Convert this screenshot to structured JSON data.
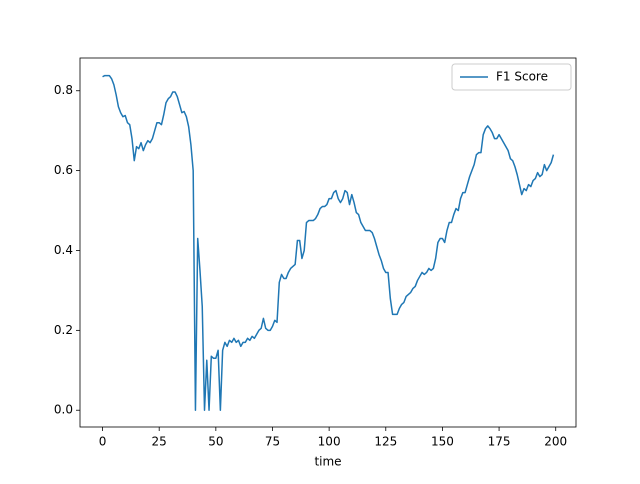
{
  "chart_data": {
    "type": "line",
    "xlabel": "time",
    "x": [
      0,
      1,
      2,
      3,
      4,
      5,
      6,
      7,
      8,
      9,
      10,
      11,
      12,
      13,
      14,
      15,
      16,
      17,
      18,
      19,
      20,
      21,
      22,
      23,
      24,
      25,
      26,
      27,
      28,
      29,
      30,
      31,
      32,
      33,
      34,
      35,
      36,
      37,
      38,
      39,
      40,
      41,
      42,
      43,
      44,
      45,
      46,
      47,
      48,
      49,
      50,
      51,
      52,
      53,
      54,
      55,
      56,
      57,
      58,
      59,
      60,
      61,
      62,
      63,
      64,
      65,
      66,
      67,
      68,
      69,
      70,
      71,
      72,
      73,
      74,
      75,
      76,
      77,
      78,
      79,
      80,
      81,
      82,
      83,
      84,
      85,
      86,
      87,
      88,
      89,
      90,
      91,
      92,
      93,
      94,
      95,
      96,
      97,
      98,
      99,
      100,
      101,
      102,
      103,
      104,
      105,
      106,
      107,
      108,
      109,
      110,
      111,
      112,
      113,
      114,
      115,
      116,
      117,
      118,
      119,
      120,
      121,
      122,
      123,
      124,
      125,
      126,
      127,
      128,
      129,
      130,
      131,
      132,
      133,
      134,
      135,
      136,
      137,
      138,
      139,
      140,
      141,
      142,
      143,
      144,
      145,
      146,
      147,
      148,
      149,
      150,
      151,
      152,
      153,
      154,
      155,
      156,
      157,
      158,
      159,
      160,
      161,
      162,
      163,
      164,
      165,
      166,
      167,
      168,
      169,
      170,
      171,
      172,
      173,
      174,
      175,
      176,
      177,
      178,
      179,
      180,
      181,
      182,
      183,
      184,
      185,
      186,
      187,
      188,
      189,
      190,
      191,
      192,
      193,
      194,
      195,
      196,
      197,
      198,
      199
    ],
    "series": [
      {
        "name": "F1 Score",
        "color": "#1f77b4",
        "values": [
          0.835,
          0.838,
          0.838,
          0.838,
          0.83,
          0.815,
          0.79,
          0.76,
          0.745,
          0.735,
          0.738,
          0.72,
          0.715,
          0.68,
          0.625,
          0.66,
          0.655,
          0.67,
          0.65,
          0.665,
          0.675,
          0.67,
          0.68,
          0.7,
          0.72,
          0.72,
          0.715,
          0.74,
          0.77,
          0.78,
          0.785,
          0.797,
          0.797,
          0.785,
          0.765,
          0.745,
          0.748,
          0.735,
          0.71,
          0.665,
          0.6,
          0.0,
          0.43,
          0.35,
          0.26,
          0.0,
          0.125,
          0.0,
          0.135,
          0.13,
          0.13,
          0.15,
          0.0,
          0.15,
          0.17,
          0.16,
          0.175,
          0.17,
          0.18,
          0.17,
          0.175,
          0.16,
          0.17,
          0.17,
          0.18,
          0.175,
          0.185,
          0.18,
          0.19,
          0.2,
          0.205,
          0.23,
          0.205,
          0.2,
          0.2,
          0.21,
          0.225,
          0.22,
          0.32,
          0.34,
          0.33,
          0.33,
          0.345,
          0.355,
          0.36,
          0.365,
          0.425,
          0.425,
          0.38,
          0.4,
          0.47,
          0.475,
          0.475,
          0.475,
          0.48,
          0.49,
          0.505,
          0.51,
          0.51,
          0.515,
          0.53,
          0.53,
          0.545,
          0.55,
          0.53,
          0.52,
          0.53,
          0.55,
          0.545,
          0.515,
          0.54,
          0.52,
          0.495,
          0.49,
          0.47,
          0.46,
          0.45,
          0.45,
          0.45,
          0.445,
          0.43,
          0.41,
          0.39,
          0.375,
          0.355,
          0.345,
          0.345,
          0.28,
          0.24,
          0.24,
          0.24,
          0.255,
          0.265,
          0.27,
          0.285,
          0.29,
          0.295,
          0.305,
          0.31,
          0.325,
          0.335,
          0.345,
          0.34,
          0.345,
          0.355,
          0.35,
          0.355,
          0.38,
          0.42,
          0.43,
          0.43,
          0.42,
          0.45,
          0.47,
          0.47,
          0.49,
          0.505,
          0.5,
          0.53,
          0.545,
          0.545,
          0.565,
          0.585,
          0.6,
          0.615,
          0.64,
          0.645,
          0.645,
          0.69,
          0.705,
          0.712,
          0.705,
          0.695,
          0.68,
          0.68,
          0.69,
          0.68,
          0.67,
          0.66,
          0.65,
          0.63,
          0.625,
          0.61,
          0.59,
          0.565,
          0.54,
          0.555,
          0.55,
          0.565,
          0.56,
          0.575,
          0.58,
          0.595,
          0.585,
          0.59,
          0.615,
          0.6,
          0.61,
          0.62,
          0.64
        ]
      }
    ],
    "xlim": [
      -9.95,
      208.95
    ],
    "xticks": [
      0,
      25,
      50,
      75,
      100,
      125,
      150,
      175,
      200
    ],
    "ylim": [
      -0.042,
      0.882
    ],
    "yticks": [
      {
        "value": 0,
        "label": "0.0"
      },
      {
        "value": 0.2,
        "label": "0.2"
      },
      {
        "value": 0.4,
        "label": "0.4"
      },
      {
        "value": 0.6,
        "label": "0.6"
      },
      {
        "value": 0.8,
        "label": "0.8"
      }
    ],
    "legend": "upper right"
  }
}
